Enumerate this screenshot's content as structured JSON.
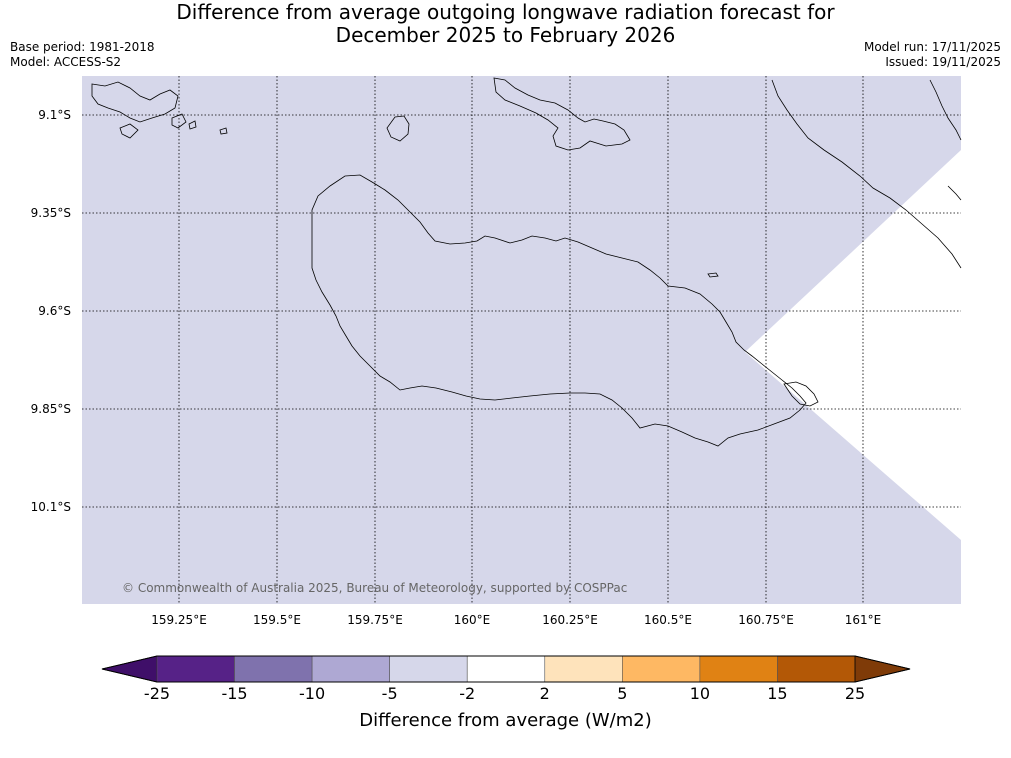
{
  "header": {
    "title_line1": "Difference from average outgoing longwave radiation forecast for",
    "title_line2": "December 2025 to February 2026",
    "base_period": "Base period: 1981-2018",
    "model": "Model: ACCESS-S2",
    "model_run": "Model run: 17/11/2025",
    "issued": "Issued: 19/11/2025"
  },
  "map": {
    "background_color": "#d6d7ea",
    "no_data_color": "#ffffff",
    "lat_labels": [
      "9.1°S",
      "9.35°S",
      "9.6°S",
      "9.85°S",
      "10.1°S"
    ],
    "lon_labels": [
      "159.25°E",
      "159.5°E",
      "159.75°E",
      "160°E",
      "160.25°E",
      "160.5°E",
      "160.75°E",
      "161°E"
    ],
    "copyright": "© Commonwealth of Australia 2025, Bureau of Meteorology, supported by COSPPac"
  },
  "colorbar": {
    "title": "Difference from average (W/m2)",
    "ticks": [
      "-25",
      "-15",
      "-10",
      "-5",
      "-2",
      "2",
      "5",
      "10",
      "15",
      "25"
    ],
    "colors": [
      "#3f0f69",
      "#562287",
      "#7f72ad",
      "#aea8d3",
      "#d6d7ea",
      "#ffffff",
      "#fee3bb",
      "#feb863",
      "#e08214",
      "#b35806",
      "#7f3b08"
    ]
  }
}
